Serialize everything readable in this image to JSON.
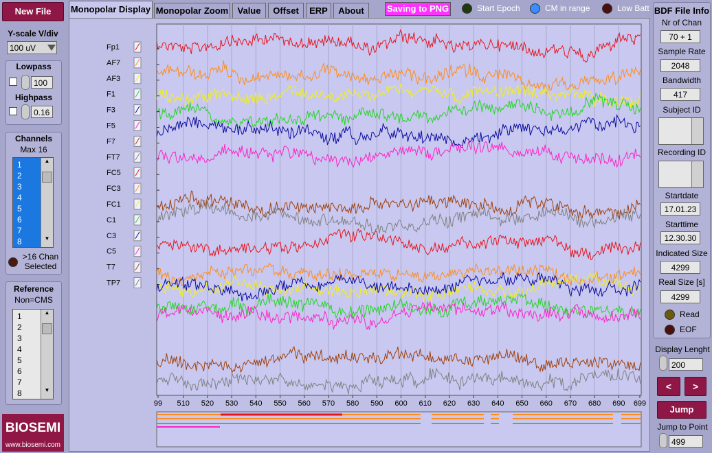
{
  "left_panel": {
    "new_file": "New File",
    "yscale_label": "Y-scale V/div",
    "yscale_value": "100 uV",
    "lowpass_label": "Lowpass",
    "lowpass_value": "100",
    "highpass_label": "Highpass",
    "highpass_value": "0.16",
    "channels_label": "Channels",
    "channels_max": "Max 16",
    "channels_list": [
      "1",
      "2",
      "3",
      "4",
      "5",
      "6",
      "7",
      "8"
    ],
    "chan_led_label": ">16 Chan Selected",
    "reference_label": "Reference",
    "reference_value": "Non=CMS",
    "reference_list": [
      "1",
      "2",
      "3",
      "4",
      "5",
      "6",
      "7",
      "8"
    ],
    "logo": "BIOSEMI",
    "website": "www.biosemi.com"
  },
  "tabs": [
    "Monopolar Display",
    "Monopolar Zoom",
    "Value",
    "Offset",
    "ERP",
    "About"
  ],
  "save_button": "Saving to PNG",
  "indicators": [
    "Start Epoch",
    "CM in range",
    "Low Batt"
  ],
  "plot": {
    "channel_labels": [
      "Fp1",
      "AF7",
      "AF3",
      "F1",
      "F3",
      "F5",
      "F7",
      "FT7",
      "FC5",
      "FC3",
      "FC1",
      "C1",
      "C3",
      "C5",
      "T7",
      "TP7"
    ],
    "x_tick_labels": [
      "99",
      "510",
      "520",
      "530",
      "540",
      "550",
      "560",
      "570",
      "580",
      "590",
      "600",
      "610",
      "620",
      "630",
      "640",
      "650",
      "660",
      "670",
      "680",
      "690",
      "699"
    ]
  },
  "file_info": {
    "title": "BDF File Info",
    "nr_chan_label": "Nr of Chan",
    "nr_chan": "70 + 1",
    "sample_rate_label": "Sample Rate",
    "sample_rate": "2048",
    "bandwidth_label": "Bandwidth",
    "bandwidth": "417",
    "subject_label": "Subject ID",
    "recording_label": "Recording ID",
    "startdate_label": "Startdate",
    "startdate": "17.01.23",
    "starttime_label": "Starttime",
    "starttime": "12.30.30",
    "indicated_label": "Indicated Size",
    "indicated": "4299",
    "real_label": "Real Size [s]",
    "real": "4299",
    "read_label": "Read",
    "eof_label": "EOF"
  },
  "controls": {
    "display_length_label": "Display Lenght",
    "display_length": "200",
    "prev": "<",
    "next": ">",
    "jump": "Jump",
    "jump_point_label": "Jump to Point",
    "jump_point": "499"
  }
}
